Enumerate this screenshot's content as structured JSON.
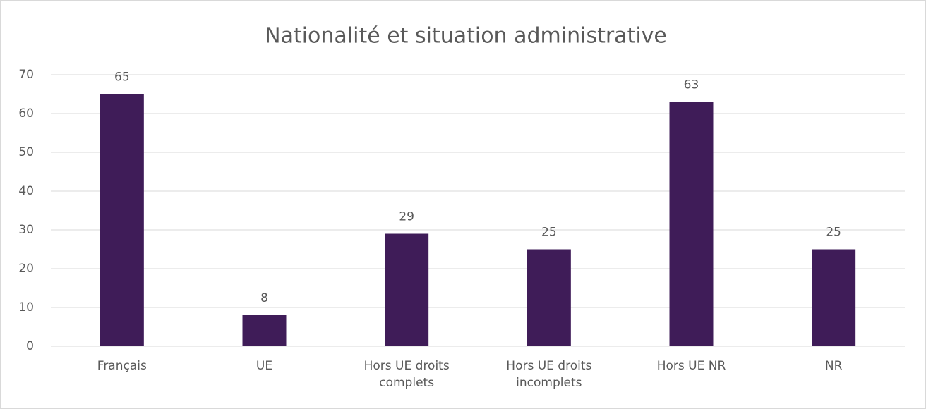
{
  "chart_data": {
    "type": "bar",
    "title": "Nationalité et situation administrative",
    "categories": [
      "Français",
      "UE",
      "Hors UE droits complets",
      "Hors UE droits incomplets",
      "Hors UE NR",
      "NR"
    ],
    "values": [
      65,
      8,
      29,
      25,
      63,
      25
    ],
    "color": "#3f1c58",
    "ylim": [
      0,
      70
    ],
    "yticks": [
      0,
      10,
      20,
      30,
      40,
      50,
      60,
      70
    ],
    "grid": true
  }
}
